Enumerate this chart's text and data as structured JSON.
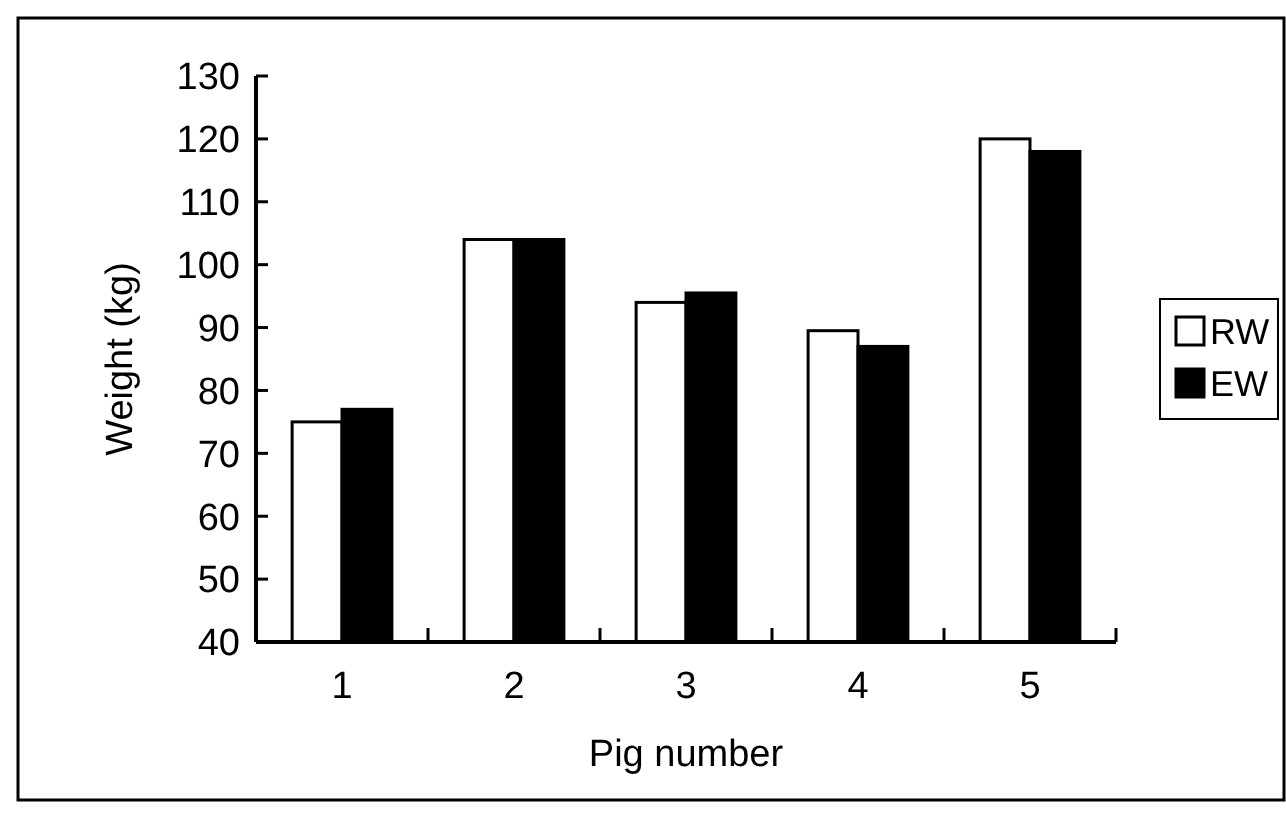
{
  "chart_data": {
    "type": "bar",
    "xlabel": "Pig number",
    "ylabel": "Weight (kg)",
    "categories": [
      "1",
      "2",
      "3",
      "4",
      "5"
    ],
    "series": [
      {
        "name": "RW",
        "color": "#ffffff",
        "values": [
          75,
          104,
          94,
          89.5,
          120
        ]
      },
      {
        "name": "EW",
        "color": "#000000",
        "values": [
          77,
          104,
          95.5,
          87,
          118
        ]
      }
    ],
    "ylim": [
      40,
      130
    ],
    "yticks": [
      40,
      50,
      60,
      70,
      80,
      90,
      100,
      110,
      120,
      130
    ],
    "grid": false,
    "legend": "right"
  }
}
